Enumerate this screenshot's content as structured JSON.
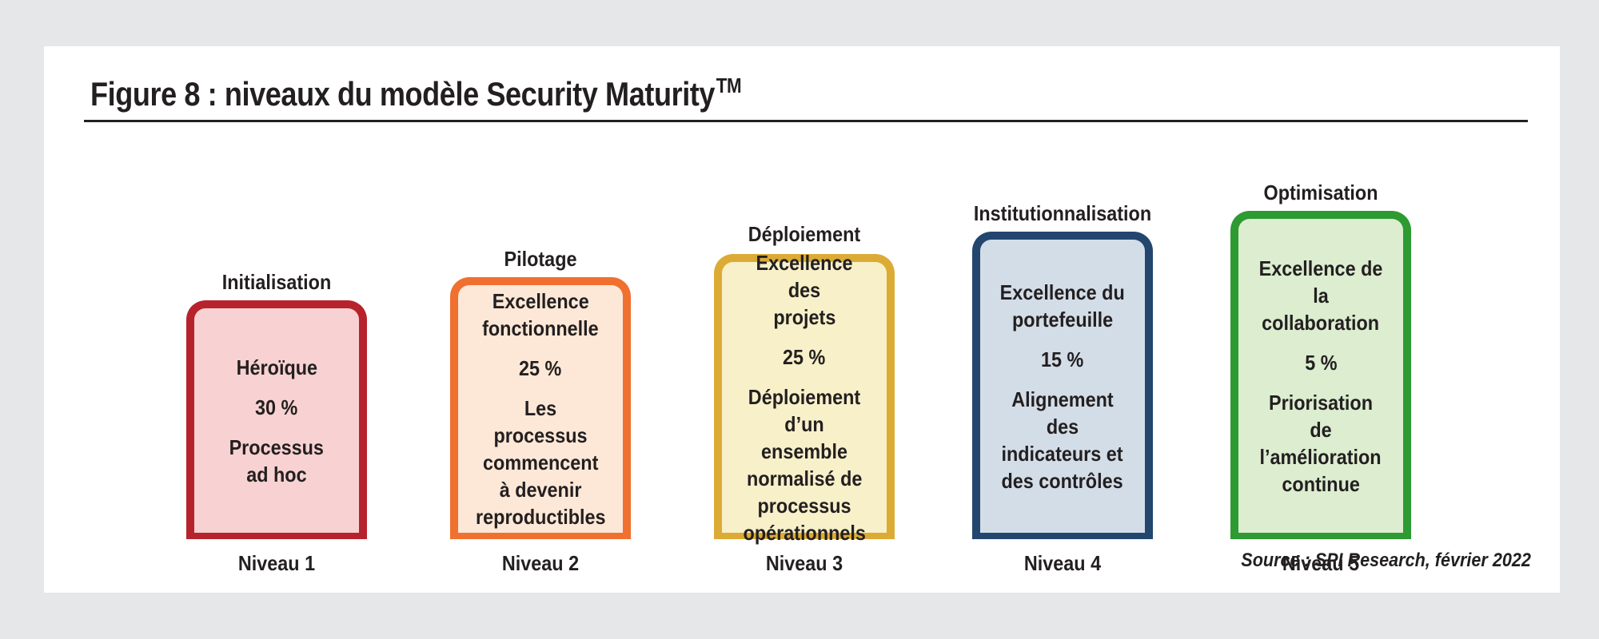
{
  "figure": {
    "title": "Figure 8 : niveaux du modèle Security Maturity",
    "title_sup": "TM",
    "source": "Source : SPI Research, février 2022"
  },
  "levels": [
    {
      "stage": "Initialisation",
      "heading": [
        "Héroïque"
      ],
      "percent": "30 %",
      "description": [
        "Processus",
        "ad hoc"
      ],
      "level": "Niveau 1",
      "border_color": "#b7232c",
      "fill_color": "#f8d2d2"
    },
    {
      "stage": "Pilotage",
      "heading": [
        "Excellence",
        "fonctionnelle"
      ],
      "percent": "25 %",
      "description": [
        "Les processus",
        "commencent",
        "à devenir",
        "reproductibles"
      ],
      "level": "Niveau 2",
      "border_color": "#f07030",
      "fill_color": "#fde8d7"
    },
    {
      "stage": "Déploiement",
      "heading": [
        "Excellence des",
        "projets"
      ],
      "percent": "25 %",
      "description": [
        "Déploiement",
        "d’un ensemble",
        "normalisé de",
        "processus",
        "opérationnels"
      ],
      "level": "Niveau 3",
      "border_color": "#dcab35",
      "fill_color": "#f7f0c9"
    },
    {
      "stage": "Institutionnalisation",
      "heading": [
        "Excellence du",
        "portefeuille"
      ],
      "percent": "15 %",
      "description": [
        "Alignement des",
        "indicateurs et",
        "des contrôles"
      ],
      "level": "Niveau 4",
      "border_color": "#22466e",
      "fill_color": "#d3dde8"
    },
    {
      "stage": "Optimisation",
      "heading": [
        "Excellence de la",
        "collaboration"
      ],
      "percent": "5 %",
      "description": [
        "Priorisation de",
        "l’amélioration",
        "continue"
      ],
      "level": "Niveau 5",
      "border_color": "#2d9a32",
      "fill_color": "#dcedd0"
    }
  ]
}
